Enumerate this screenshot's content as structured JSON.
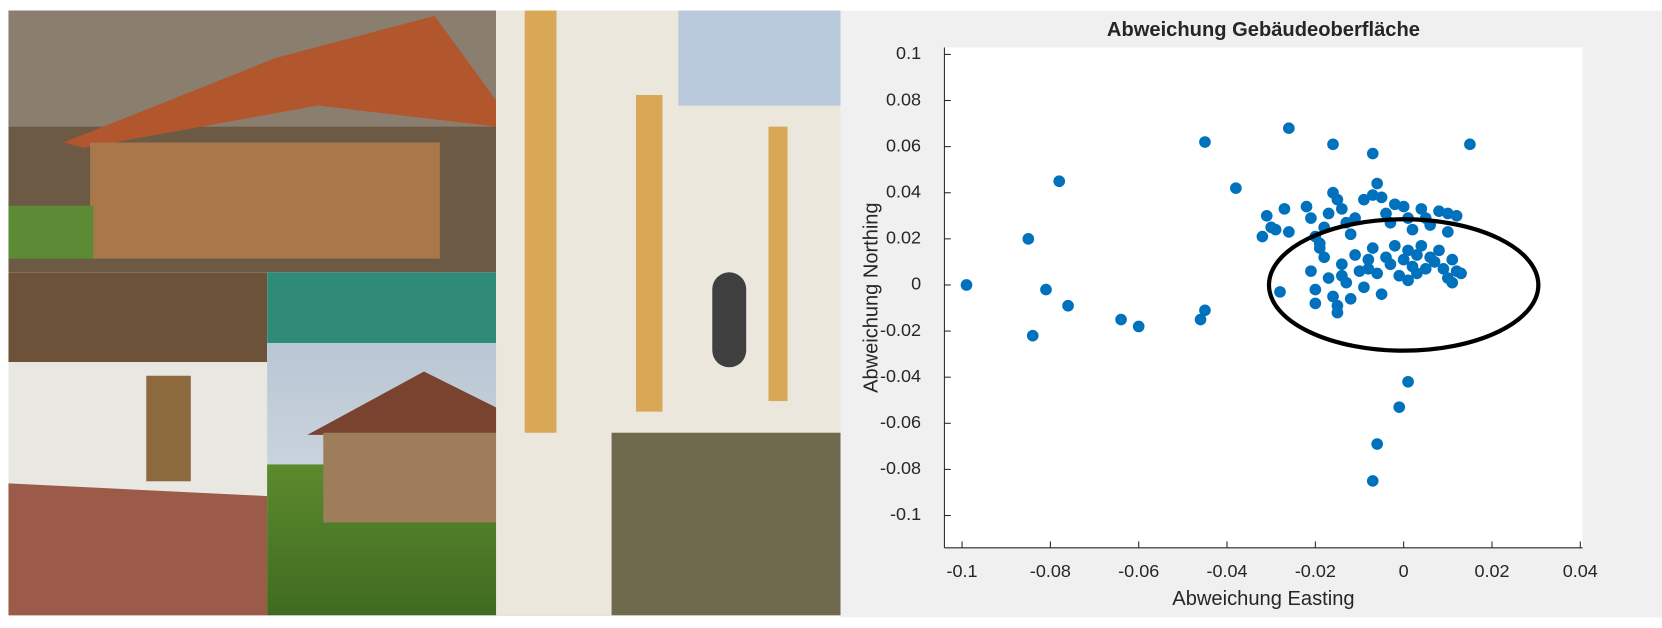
{
  "chart_data": {
    "type": "scatter",
    "title": "Abweichung Gebäudeoberfläche",
    "xlabel": "Abweichung Easting",
    "ylabel": "Abweichung Northing",
    "color": "#0072bd",
    "x": [
      -0.099,
      -0.085,
      -0.084,
      -0.081,
      -0.078,
      -0.076,
      -0.064,
      -0.06,
      -0.045,
      -0.045,
      -0.046,
      -0.038,
      -0.026,
      -0.016,
      -0.007,
      0.015,
      0.001,
      -0.001,
      -0.006,
      -0.007,
      -0.031,
      -0.032,
      -0.03,
      -0.029,
      -0.027,
      -0.026,
      -0.028,
      -0.022,
      -0.021,
      -0.02,
      -0.019,
      -0.018,
      -0.017,
      -0.016,
      -0.015,
      -0.014,
      -0.013,
      -0.012,
      -0.011,
      -0.009,
      -0.007,
      -0.006,
      -0.005,
      -0.004,
      -0.003,
      -0.002,
      0,
      0.001,
      0.002,
      0.004,
      0.005,
      0.006,
      0.008,
      0.01,
      0.012,
      0.01,
      -0.021,
      -0.02,
      -0.02,
      -0.018,
      -0.017,
      -0.016,
      -0.015,
      -0.014,
      -0.013,
      -0.012,
      -0.011,
      -0.01,
      -0.009,
      -0.008,
      -0.007,
      -0.006,
      -0.005,
      -0.004,
      -0.003,
      -0.002,
      -0.001,
      0,
      0.001,
      0.001,
      0.002,
      0.003,
      0.004,
      0.005,
      0.006,
      0.007,
      0.008,
      0.009,
      0.01,
      0.011,
      0.012,
      0.013,
      0.011,
      -0.019,
      -0.014,
      -0.008,
      0.003,
      -0.015
    ],
    "values": [
      0,
      0.02,
      -0.022,
      -0.002,
      0.045,
      -0.009,
      -0.015,
      -0.018,
      0.062,
      -0.011,
      -0.015,
      0.042,
      0.068,
      0.061,
      0.057,
      0.061,
      -0.042,
      -0.053,
      -0.069,
      -0.085,
      0.03,
      0.021,
      0.025,
      0.024,
      0.033,
      0.023,
      -0.003,
      0.034,
      0.029,
      0.021,
      0.018,
      0.025,
      0.031,
      0.04,
      0.037,
      0.033,
      0.027,
      0.022,
      0.029,
      0.037,
      0.039,
      0.044,
      0.038,
      0.031,
      0.027,
      0.035,
      0.034,
      0.029,
      0.024,
      0.033,
      0.029,
      0.026,
      0.032,
      0.031,
      0.03,
      0.023,
      0.006,
      -0.002,
      -0.008,
      0.012,
      0.003,
      -0.005,
      -0.012,
      0.009,
      0.001,
      -0.006,
      0.013,
      0.006,
      -0.001,
      0.011,
      0.016,
      0.005,
      -0.004,
      0.012,
      0.009,
      0.017,
      0.004,
      0.011,
      0.015,
      0.002,
      0.008,
      0.013,
      0.017,
      0.007,
      0.012,
      0.01,
      0.015,
      0.007,
      0.003,
      0.011,
      0.006,
      0.005,
      0.001,
      0.016,
      0.004,
      0.007,
      0.005,
      -0.009
    ],
    "xlim": [
      -0.104,
      0.0405
    ],
    "ylim": [
      -0.114,
      0.103
    ],
    "xticks": [
      -0.1,
      -0.08,
      -0.06,
      -0.04,
      -0.02,
      0,
      0.02,
      0.04
    ],
    "yticks": [
      -0.1,
      -0.08,
      -0.06,
      -0.04,
      -0.02,
      0,
      0.02,
      0.04,
      0.06,
      0.08,
      0.1
    ],
    "annotation_ellipse": {
      "center": [
        0,
        0
      ],
      "rx": 0.0305,
      "ry": 0.0285,
      "color": "#000000"
    }
  }
}
